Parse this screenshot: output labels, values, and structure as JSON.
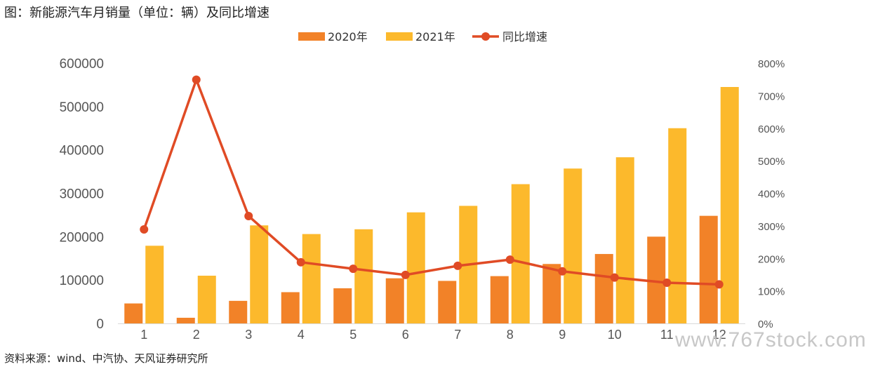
{
  "title": "图：新能源汽车月销量（单位：辆）及同比增速",
  "source": "资料来源：wind、中汽协、天风证券研究所",
  "watermark": "www.767stock.com",
  "chart_data": {
    "type": "bar",
    "categories": [
      "1",
      "2",
      "3",
      "4",
      "5",
      "6",
      "7",
      "8",
      "9",
      "10",
      "11",
      "12"
    ],
    "series": [
      {
        "name": "2020年",
        "type": "bar",
        "axis": "left",
        "color": "#f28228",
        "values": [
          46000,
          13000,
          52000,
          72000,
          81000,
          104000,
          98000,
          109000,
          137000,
          160000,
          200000,
          248000
        ]
      },
      {
        "name": "2021年",
        "type": "bar",
        "axis": "left",
        "color": "#fcb92c",
        "values": [
          179000,
          110000,
          226000,
          206000,
          217000,
          256000,
          271000,
          321000,
          357000,
          383000,
          450000,
          545000
        ]
      },
      {
        "name": "同比增速",
        "type": "line",
        "axis": "right",
        "unit": "%",
        "color": "#e04b25",
        "values": [
          289,
          749,
          330,
          188,
          168,
          149,
          177,
          196,
          160,
          141,
          125,
          120
        ]
      }
    ],
    "ylim_left": [
      0,
      600000
    ],
    "yticks_left": [
      "0",
      "100000",
      "200000",
      "300000",
      "400000",
      "500000",
      "600000"
    ],
    "ylim_right": [
      0,
      800
    ],
    "yticks_right": [
      "0%",
      "100%",
      "200%",
      "300%",
      "400%",
      "500%",
      "600%",
      "700%",
      "800%"
    ],
    "legend_position": "top-center",
    "grid": false
  }
}
